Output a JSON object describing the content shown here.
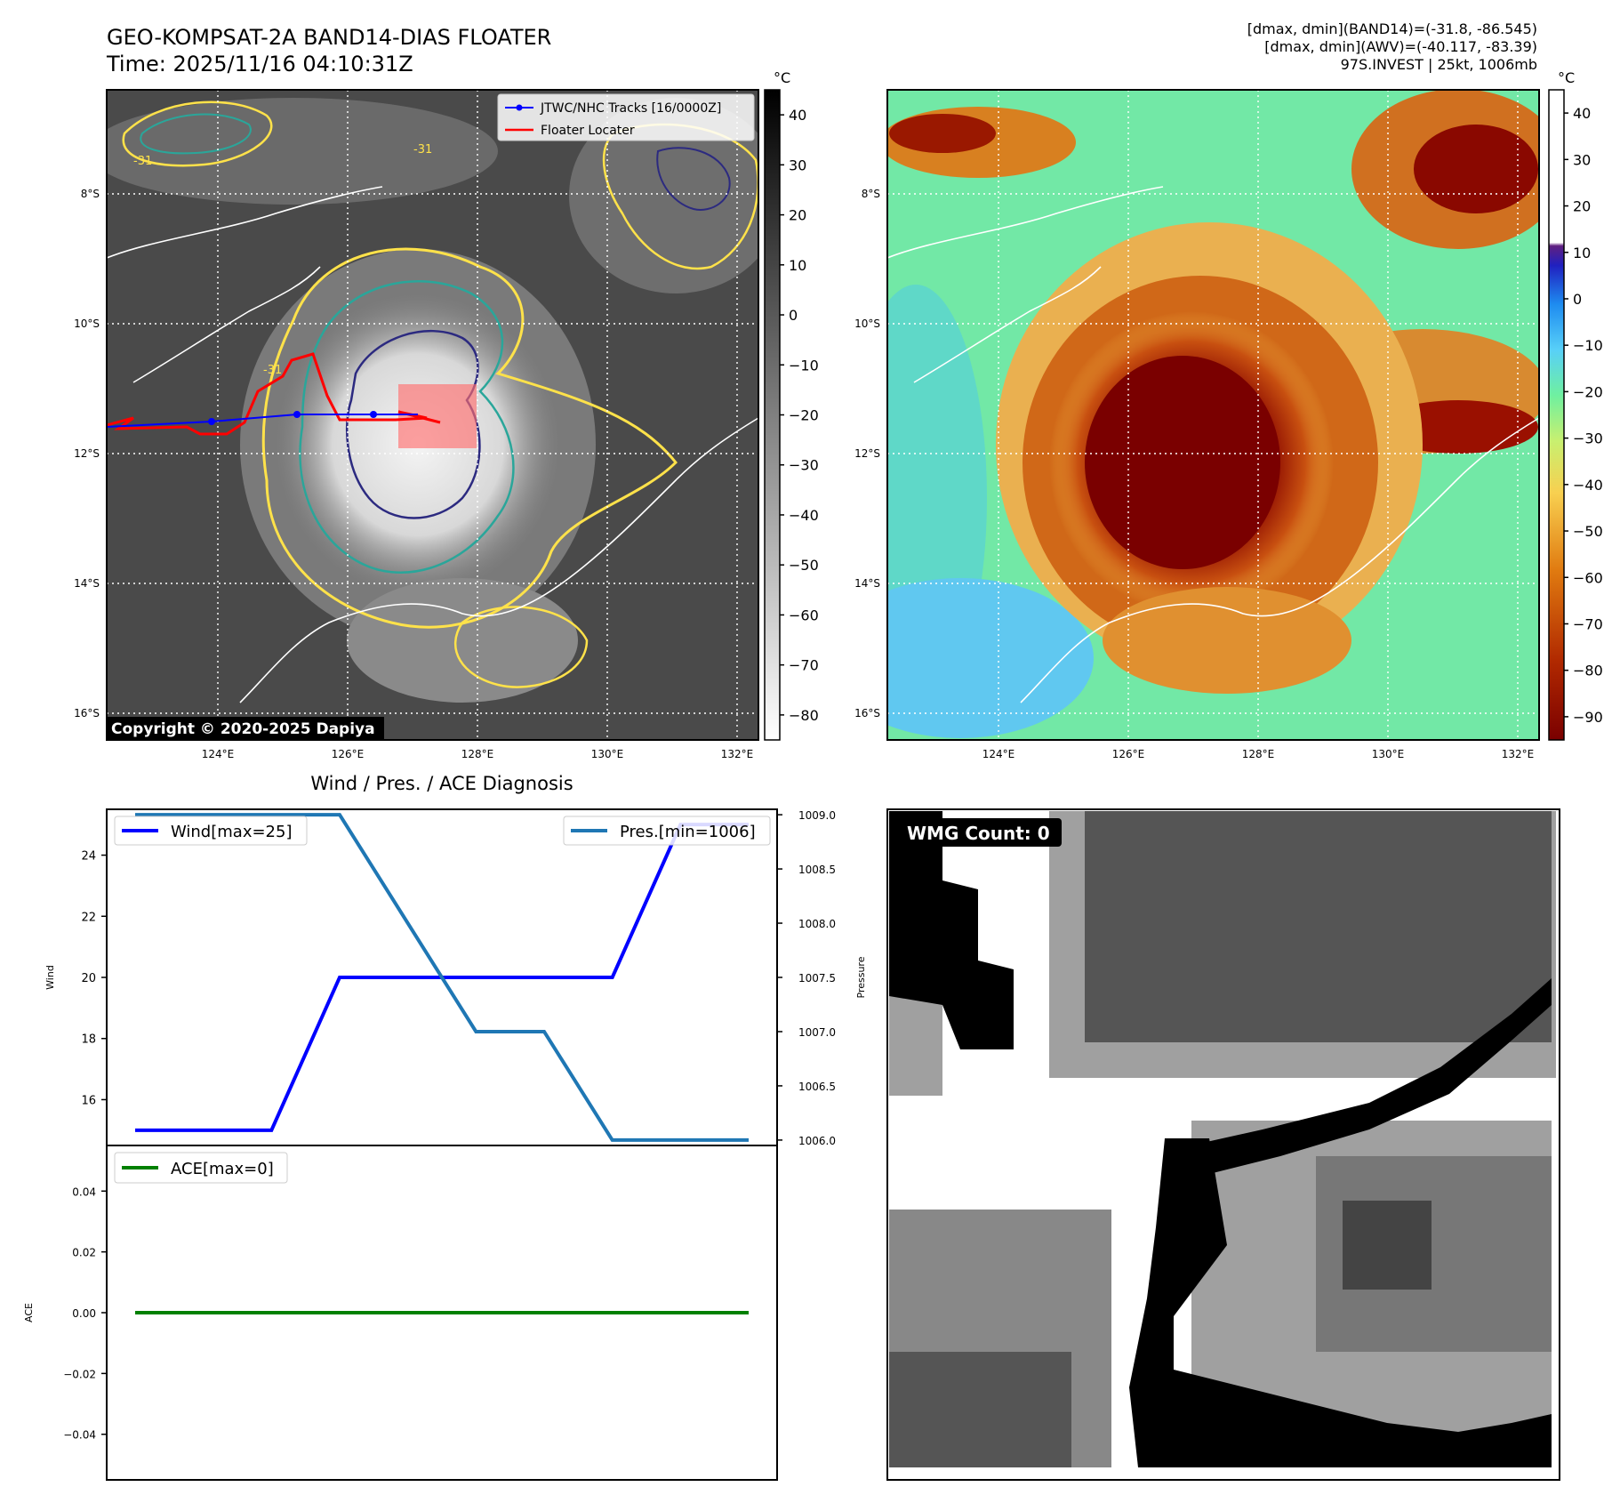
{
  "header": {
    "title_line1": "GEO-KOMPSAT-2A BAND14-DIAS FLOATER",
    "title_line2": "Time: 2025/11/16 04:10:31Z",
    "info_line1": "[dmax, dmin](BAND14)=(-31.8, -86.545)",
    "info_line2": "[dmax, dmin](AWV)=(-40.117, -83.39)",
    "info_line3": "97S.INVEST | 25kt, 1006mb"
  },
  "maps": {
    "lon_ticks": [
      "124°E",
      "126°E",
      "128°E",
      "130°E",
      "132°E"
    ],
    "lat_ticks": [
      "8°S",
      "10°S",
      "12°S",
      "14°S",
      "16°S"
    ],
    "copyright": "Copyright © 2020-2025 Dapiya",
    "contour_label": "-31",
    "left_cbar_unit": "°C",
    "left_cbar_ticks": [
      "40",
      "30",
      "20",
      "10",
      "0",
      "−10",
      "−20",
      "−30",
      "−40",
      "−50",
      "−60",
      "−70",
      "−80"
    ],
    "right_cbar_unit": "°C",
    "right_cbar_ticks": [
      "40",
      "30",
      "20",
      "10",
      "0",
      "−10",
      "−20",
      "−30",
      "−40",
      "−50",
      "−60",
      "−70",
      "−80",
      "−90"
    ],
    "legend_tracks": "JTWC/NHC Tracks [16/0000Z]",
    "legend_floater": "Floater Locater",
    "colors": {
      "track": "#0000ff",
      "floater": "#ff0000",
      "contour_yellow": "#ffe24a",
      "contour_teal": "#2aa69a",
      "contour_navy": "#2c2a80"
    }
  },
  "diagnosis": {
    "title": "Wind / Pres. / ACE Diagnosis",
    "wind_ylabel": "Wind",
    "pres_ylabel": "Pressure",
    "ace_ylabel": "ACE",
    "wind_legend": "Wind[max=25]",
    "pres_legend": "Pres.[min=1006]",
    "ace_legend": "ACE[max=0]"
  },
  "wmg": {
    "label": "WMG Count: 0"
  },
  "chart_data": [
    {
      "type": "line",
      "title": "Wind / Pres. / ACE Diagnosis",
      "x": [
        0,
        1,
        2,
        3,
        4,
        5,
        6,
        7,
        8,
        9
      ],
      "ylabel": "Wind",
      "y2label": "Pressure",
      "ylim": [
        14.5,
        25.5
      ],
      "y2lim": [
        1005.95,
        1009.05
      ],
      "yticks": [
        16,
        18,
        20,
        22,
        24
      ],
      "y2ticks": [
        1006.0,
        1006.5,
        1007.0,
        1007.5,
        1008.0,
        1008.5,
        1009.0
      ],
      "series": [
        {
          "name": "Wind[max=25]",
          "axis": "left",
          "color": "#0000ff",
          "values": [
            15,
            15,
            15,
            20,
            20,
            20,
            20,
            20,
            25,
            25
          ]
        },
        {
          "name": "Pres.[min=1006]",
          "axis": "right",
          "color": "#1f77b4",
          "values": [
            1009,
            1009,
            1009,
            1009,
            1008.0,
            1007.0,
            1007.0,
            1006,
            1006,
            1006
          ]
        }
      ],
      "legend": [
        "top-left",
        "top-right"
      ]
    },
    {
      "type": "line",
      "x": [
        0,
        1,
        2,
        3,
        4,
        5,
        6,
        7,
        8,
        9
      ],
      "ylabel": "ACE",
      "ylim": [
        -0.055,
        0.055
      ],
      "yticks": [
        0.04,
        0.02,
        0.0,
        -0.02,
        -0.04
      ],
      "series": [
        {
          "name": "ACE[max=0]",
          "color": "#008000",
          "values": [
            0,
            0,
            0,
            0,
            0,
            0,
            0,
            0,
            0,
            0
          ]
        }
      ],
      "legend": "top-left"
    }
  ]
}
